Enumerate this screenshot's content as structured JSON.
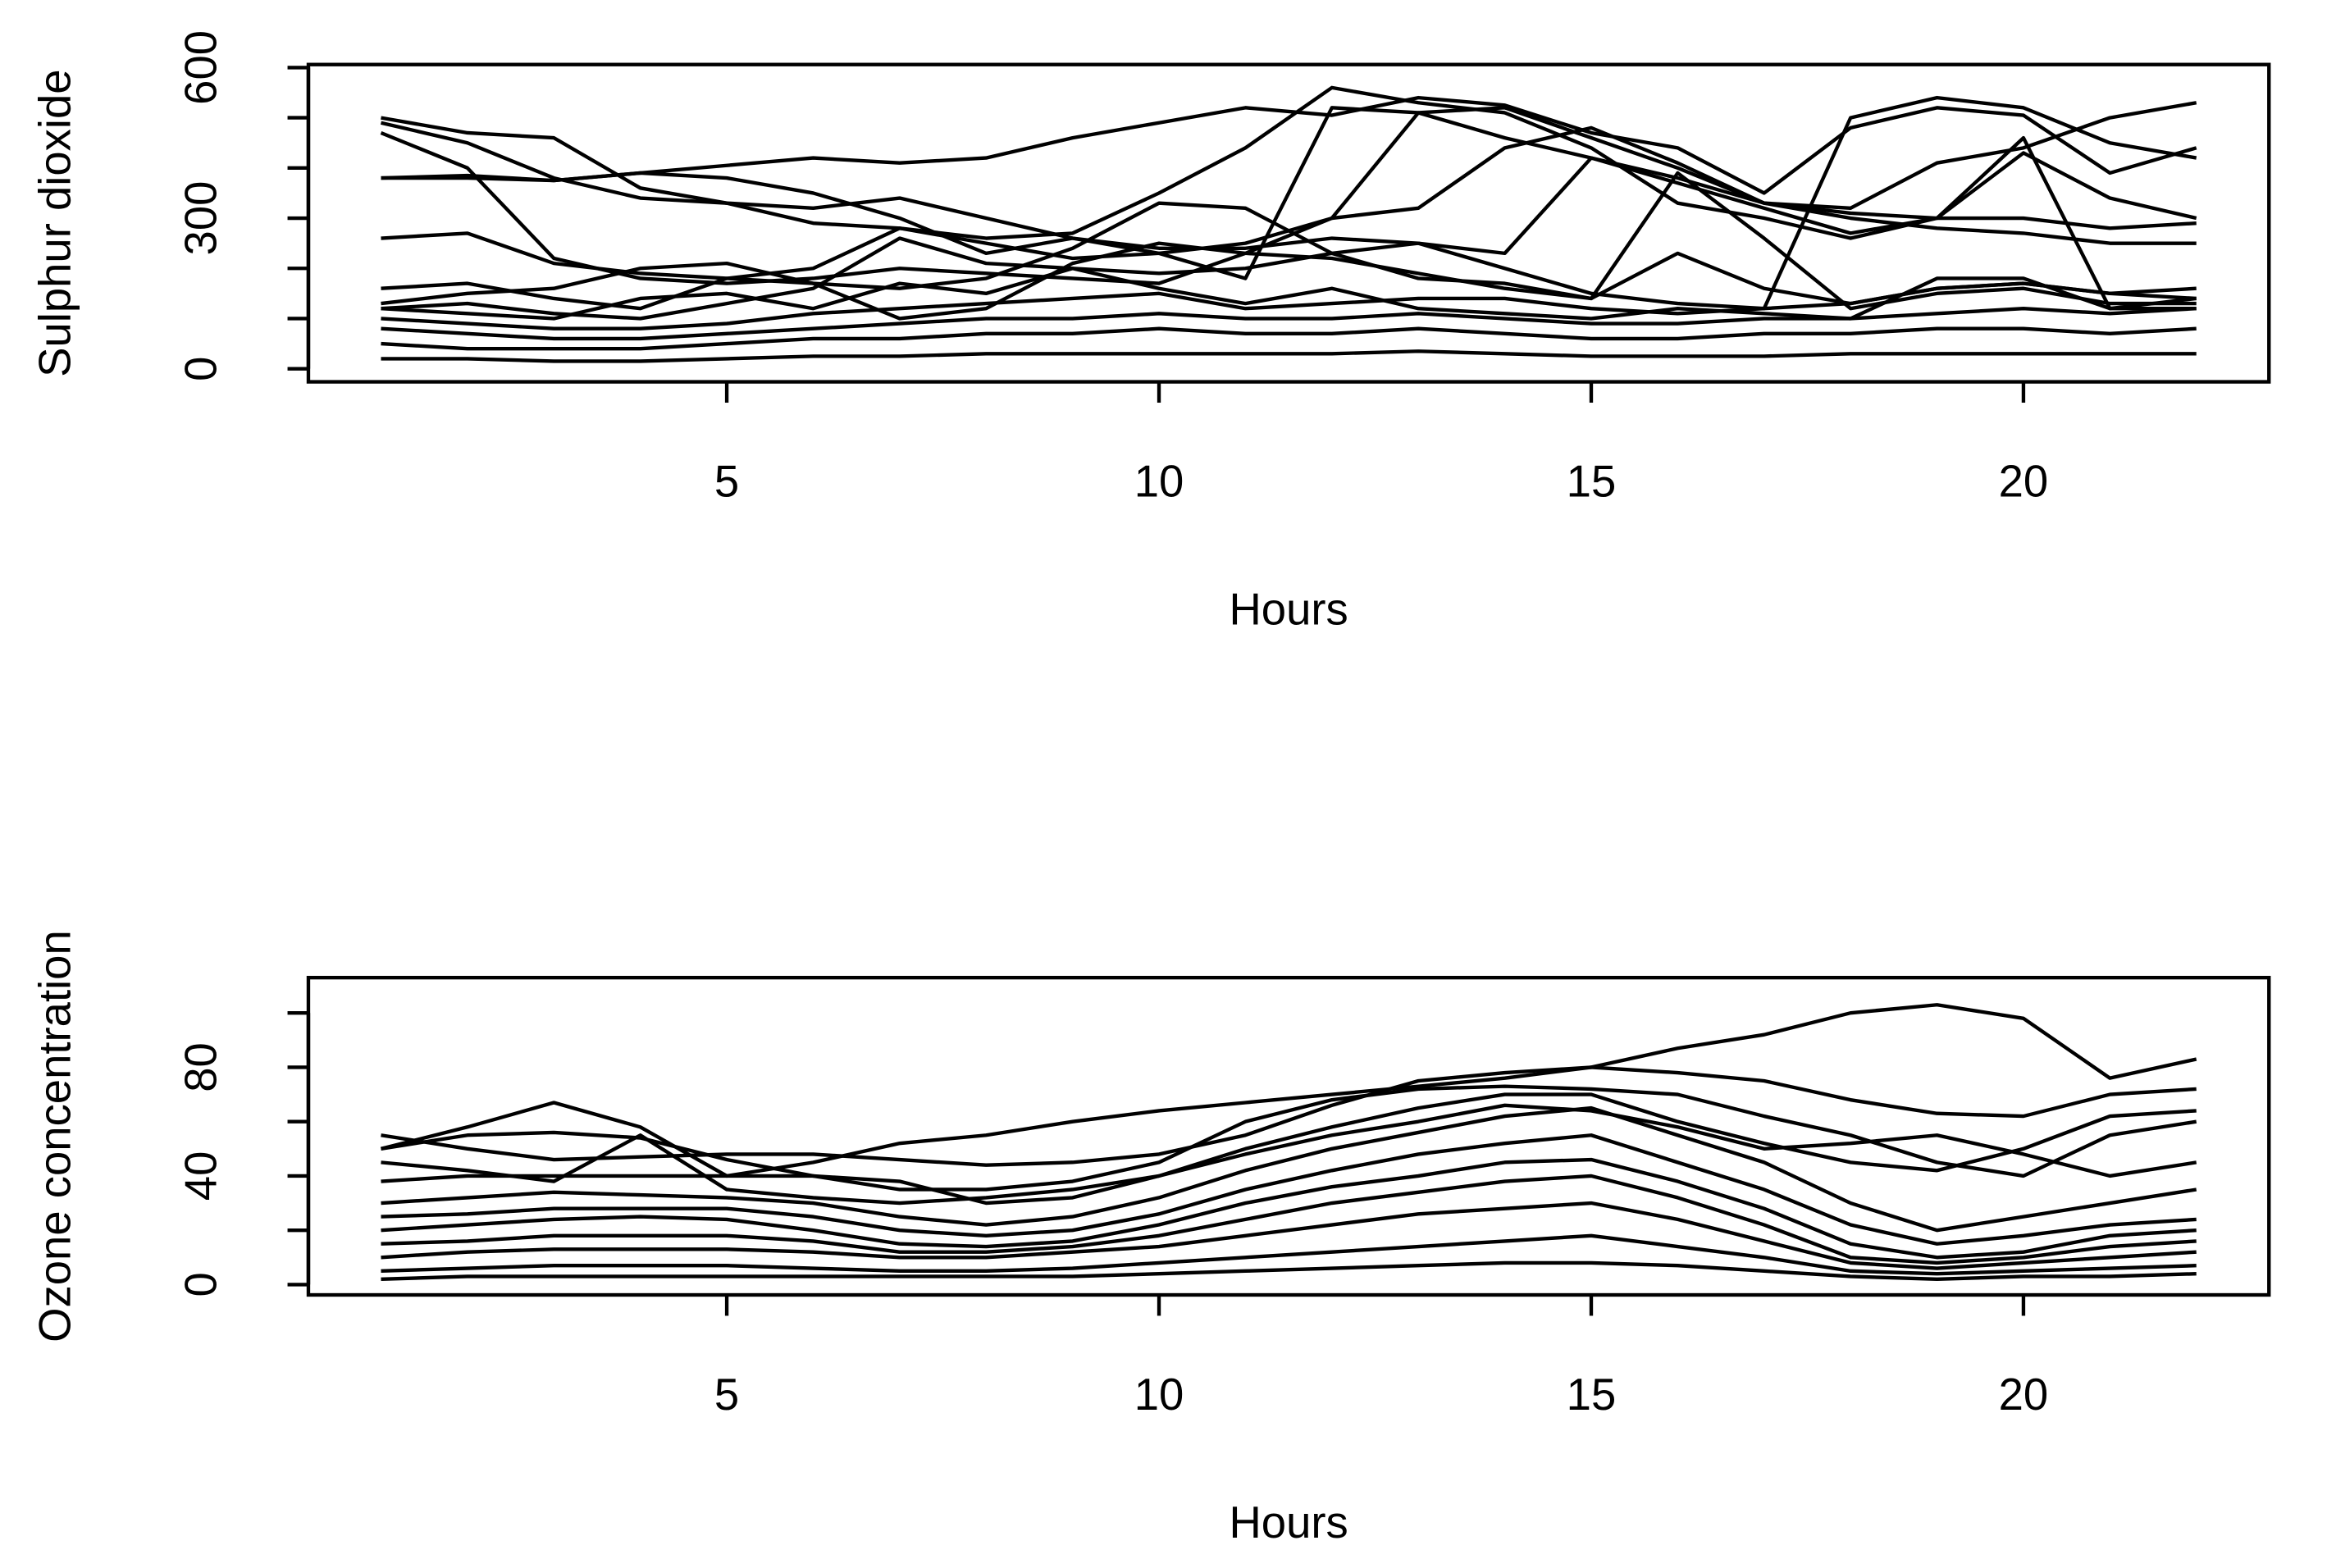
{
  "chart_data": [
    {
      "type": "line",
      "ylabel": "Sulphur dioxide",
      "xlabel": "Hours",
      "x": [
        1,
        2,
        3,
        4,
        5,
        6,
        7,
        8,
        9,
        10,
        11,
        12,
        13,
        14,
        15,
        16,
        17,
        18,
        19,
        20,
        21,
        22
      ],
      "xlim": [
        0.16,
        22.84
      ],
      "xticks": [
        5,
        10,
        15,
        20
      ],
      "ylim": [
        -26,
        606
      ],
      "yticks": [
        0,
        300,
        600
      ],
      "yminor_ticks": [
        100,
        200,
        400,
        500
      ],
      "color": "#000000",
      "series": [
        {
          "values": [
            500,
            470,
            460,
            360,
            330,
            320,
            340,
            300,
            260,
            230,
            250,
            300,
            320,
            440,
            480,
            410,
            330,
            310,
            300,
            300,
            280,
            290
          ]
        },
        {
          "values": [
            380,
            385,
            375,
            390,
            405,
            420,
            410,
            420,
            460,
            490,
            520,
            505,
            540,
            525,
            470,
            440,
            350,
            480,
            520,
            505,
            390,
            440
          ]
        },
        {
          "values": [
            470,
            400,
            220,
            180,
            170,
            180,
            200,
            190,
            180,
            170,
            230,
            300,
            510,
            520,
            460,
            400,
            330,
            300,
            280,
            270,
            250,
            250
          ]
        },
        {
          "values": [
            260,
            270,
            210,
            190,
            180,
            170,
            160,
            180,
            240,
            330,
            320,
            230,
            180,
            170,
            140,
            230,
            160,
            130,
            160,
            170,
            150,
            140
          ]
        },
        {
          "values": [
            490,
            450,
            380,
            340,
            330,
            290,
            280,
            260,
            270,
            350,
            440,
            560,
            530,
            510,
            440,
            330,
            300,
            260,
            300,
            430,
            340,
            300
          ]
        },
        {
          "values": [
            160,
            170,
            140,
            120,
            180,
            200,
            280,
            250,
            220,
            230,
            180,
            520,
            510,
            460,
            420,
            370,
            320,
            270,
            300,
            460,
            120,
            140
          ]
        },
        {
          "values": [
            130,
            150,
            160,
            200,
            210,
            170,
            100,
            120,
            210,
            250,
            230,
            220,
            190,
            160,
            140,
            390,
            260,
            120,
            150,
            160,
            130,
            130
          ]
        },
        {
          "values": [
            120,
            130,
            110,
            100,
            130,
            160,
            260,
            210,
            200,
            190,
            200,
            230,
            250,
            200,
            150,
            130,
            120,
            500,
            540,
            520,
            450,
            420
          ]
        },
        {
          "values": [
            380,
            380,
            375,
            390,
            380,
            350,
            300,
            230,
            260,
            240,
            240,
            260,
            250,
            230,
            420,
            380,
            330,
            320,
            410,
            440,
            500,
            530
          ]
        },
        {
          "values": [
            120,
            110,
            100,
            140,
            150,
            120,
            170,
            150,
            200,
            160,
            130,
            160,
            120,
            110,
            100,
            120,
            110,
            100,
            180,
            180,
            120,
            120
          ]
        },
        {
          "values": [
            100,
            90,
            80,
            80,
            90,
            110,
            120,
            130,
            140,
            150,
            120,
            130,
            140,
            140,
            120,
            110,
            120,
            130,
            160,
            170,
            150,
            160
          ]
        },
        {
          "values": [
            80,
            70,
            60,
            60,
            70,
            80,
            90,
            100,
            100,
            110,
            100,
            100,
            110,
            100,
            90,
            90,
            100,
            100,
            110,
            120,
            110,
            120
          ]
        },
        {
          "values": [
            50,
            40,
            40,
            40,
            50,
            60,
            60,
            70,
            70,
            80,
            70,
            70,
            80,
            70,
            60,
            60,
            70,
            70,
            80,
            80,
            70,
            80
          ]
        },
        {
          "values": [
            20,
            20,
            15,
            15,
            20,
            25,
            25,
            30,
            30,
            30,
            30,
            30,
            35,
            30,
            25,
            25,
            25,
            30,
            30,
            30,
            30,
            30
          ]
        }
      ]
    },
    {
      "type": "line",
      "ylabel": "Ozone concentration",
      "xlabel": "Hours",
      "x": [
        1,
        2,
        3,
        4,
        5,
        6,
        7,
        8,
        9,
        10,
        11,
        12,
        13,
        14,
        15,
        16,
        17,
        18,
        19,
        20,
        21,
        22
      ],
      "xlim": [
        0.16,
        22.84
      ],
      "xticks": [
        5,
        10,
        15,
        20
      ],
      "ylim": [
        -3.8,
        113
      ],
      "yticks": [
        0,
        40,
        80
      ],
      "yminor_ticks": [
        20,
        60,
        100
      ],
      "color": "#000000",
      "series": [
        {
          "values": [
            50,
            58,
            67,
            58,
            40,
            45,
            52,
            55,
            60,
            64,
            67,
            70,
            73,
            76,
            80,
            87,
            92,
            100,
            103,
            98,
            76,
            83
          ]
        },
        {
          "values": [
            55,
            50,
            46,
            47,
            48,
            48,
            46,
            44,
            45,
            48,
            55,
            66,
            75,
            78,
            80,
            78,
            75,
            68,
            63,
            62,
            70,
            72
          ]
        },
        {
          "values": [
            50,
            55,
            56,
            54,
            46,
            40,
            35,
            35,
            38,
            45,
            60,
            68,
            72,
            73,
            72,
            70,
            62,
            55,
            45,
            40,
            55,
            60
          ]
        },
        {
          "values": [
            38,
            40,
            40,
            40,
            40,
            40,
            38,
            30,
            32,
            40,
            50,
            58,
            65,
            70,
            70,
            60,
            52,
            45,
            42,
            50,
            62,
            64
          ]
        },
        {
          "values": [
            45,
            42,
            38,
            55,
            35,
            32,
            30,
            32,
            35,
            40,
            48,
            55,
            60,
            66,
            64,
            58,
            50,
            52,
            55,
            48,
            40,
            45
          ]
        },
        {
          "values": [
            30,
            32,
            34,
            33,
            32,
            30,
            25,
            22,
            25,
            32,
            42,
            50,
            56,
            62,
            65,
            55,
            45,
            30,
            20,
            25,
            30,
            35
          ]
        },
        {
          "values": [
            25,
            26,
            28,
            28,
            28,
            25,
            20,
            18,
            20,
            26,
            35,
            42,
            48,
            52,
            55,
            45,
            35,
            22,
            15,
            18,
            22,
            24
          ]
        },
        {
          "values": [
            20,
            22,
            24,
            25,
            24,
            20,
            15,
            14,
            16,
            22,
            30,
            36,
            40,
            45,
            46,
            38,
            28,
            15,
            10,
            12,
            18,
            20
          ]
        },
        {
          "values": [
            15,
            16,
            18,
            18,
            18,
            16,
            12,
            12,
            14,
            18,
            24,
            30,
            34,
            38,
            40,
            32,
            22,
            10,
            8,
            10,
            14,
            16
          ]
        },
        {
          "values": [
            10,
            12,
            13,
            13,
            13,
            12,
            10,
            10,
            12,
            14,
            18,
            22,
            26,
            28,
            30,
            24,
            16,
            8,
            6,
            8,
            10,
            12
          ]
        },
        {
          "values": [
            5,
            6,
            7,
            7,
            7,
            6,
            5,
            5,
            6,
            8,
            10,
            12,
            14,
            16,
            18,
            14,
            10,
            5,
            4,
            5,
            6,
            7
          ]
        },
        {
          "values": [
            2,
            3,
            3,
            3,
            3,
            3,
            3,
            3,
            3,
            4,
            5,
            6,
            7,
            8,
            8,
            7,
            5,
            3,
            2,
            3,
            3,
            4
          ]
        }
      ]
    }
  ]
}
